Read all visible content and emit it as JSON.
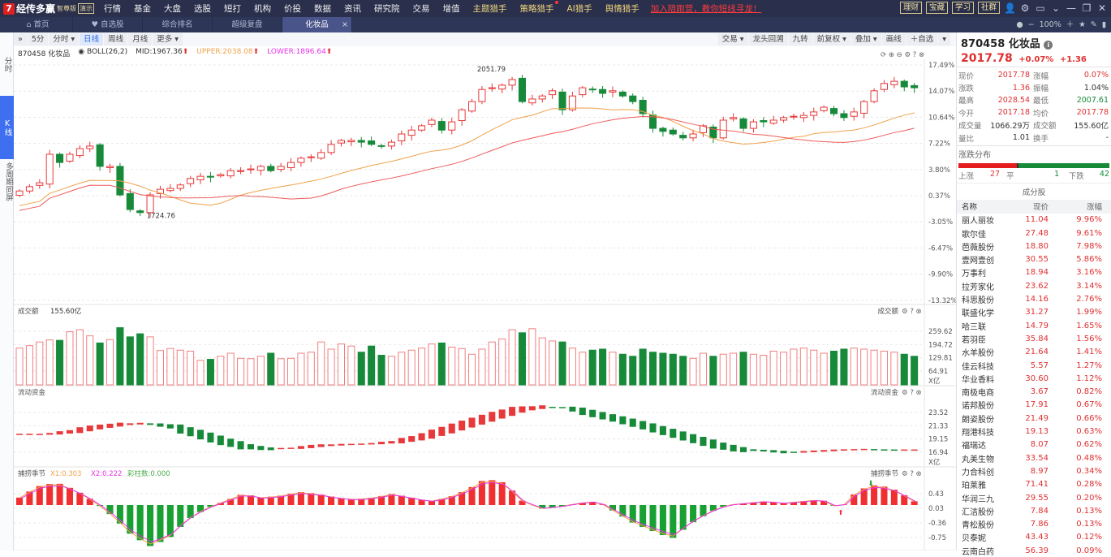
{
  "app": {
    "brand_mark": "7",
    "name": "经传多赢",
    "edition": "智尊版",
    "demo": "演示"
  },
  "menu": [
    "行情",
    "基金",
    "大盘",
    "选股",
    "短打",
    "机构",
    "价投",
    "数据",
    "资讯",
    "研究院",
    "交易",
    "增值"
  ],
  "menu_gold": [
    {
      "label": "主题猎手",
      "dot": false
    },
    {
      "label": "策略猎手",
      "dot": true
    },
    {
      "label": "AI猎手",
      "dot": false
    },
    {
      "label": "舆情猎手",
      "dot": false
    }
  ],
  "promo": "加入陪跑营，教你短线寻龙！",
  "top_buttons": [
    "理财",
    "宝藏",
    "学习",
    "社群"
  ],
  "tabs": [
    {
      "label": "首页",
      "icon": "home-icon"
    },
    {
      "label": "自选股",
      "icon": "heart-icon"
    },
    {
      "label": "综合排名"
    },
    {
      "label": "超级复盘"
    },
    {
      "label": "化妆品",
      "active": true
    }
  ],
  "zoom_level": "100%",
  "left_tabs": [
    "分时",
    "K线",
    "多周期同屏"
  ],
  "toolbar": {
    "left": [
      "5分",
      "分时 ▾",
      "日线",
      "周线",
      "月线",
      "更多 ▾"
    ],
    "selected": "日线",
    "right": [
      "交易 ▾",
      "龙头回溯",
      "九转",
      "前复权 ▾",
      "叠加 ▾",
      "画线",
      "＋自选",
      "▾"
    ]
  },
  "chart_info": {
    "code_name": "870458 化妆品",
    "indicator": "BOLL(26,2)",
    "mid": "MID:1967.36",
    "upper": "UPPER:2038.08",
    "lower": "LOWER:1896.64"
  },
  "price_axis": [
    "17.49%",
    "14.07%",
    "10.64%",
    "7.22%",
    "3.80%",
    "0.37%",
    "-3.05%",
    "-6.47%",
    "-9.90%",
    "-13.32%"
  ],
  "high_label": "2051.79",
  "low_label": "1724.76",
  "colors": {
    "up": "#e8393a",
    "down": "#178a3a",
    "ma1": "#f0a24a",
    "ma2": "#ee5a5a",
    "nav": "#2a2f4c",
    "accent": "#3e6ff0"
  },
  "candles_close": [
    1779,
    1789,
    1798,
    1864,
    1845,
    1864,
    1877,
    1883,
    1836,
    1836,
    1770,
    1736,
    1729,
    1770,
    1783,
    1785,
    1793,
    1808,
    1813,
    1811,
    1817,
    1826,
    1826,
    1830,
    1836,
    1826,
    1836,
    1845,
    1855,
    1858,
    1868,
    1887,
    1896,
    1896,
    1892,
    1887,
    1883,
    1892,
    1911,
    1920,
    1930,
    1943,
    1920,
    1939,
    1967,
    1986,
    2014,
    2018,
    2024,
    2037,
    1986,
    1992,
    1999,
    2011,
    1967,
    1999,
    2018,
    2014,
    2005,
    2011,
    1999,
    1986,
    1958,
    1924,
    1917,
    1911,
    1902,
    1911,
    1930,
    1902,
    1943,
    1949,
    1924,
    1939,
    1939,
    1943,
    1949,
    1952,
    1954,
    1962,
    1973,
    1958,
    1949,
    1962,
    1986,
    2011,
    2028,
    2033,
    2020,
    2018
  ],
  "volume": {
    "title": "成交额",
    "value": "155.60亿",
    "axis": [
      "259.62",
      "194.72",
      "129.81",
      "64.91"
    ],
    "unit": "X亿",
    "values": [
      180,
      192,
      210,
      220,
      218,
      260,
      270,
      240,
      205,
      222,
      280,
      235,
      250,
      235,
      168,
      178,
      170,
      165,
      120,
      125,
      140,
      155,
      130,
      128,
      140,
      155,
      128,
      130,
      155,
      160,
      210,
      175,
      200,
      190,
      160,
      190,
      145,
      140,
      160,
      170,
      180,
      200,
      205,
      185,
      178,
      150,
      175,
      210,
      225,
      270,
      255,
      275,
      230,
      215,
      210,
      180,
      160,
      170,
      175,
      160,
      150,
      140,
      175,
      160,
      155,
      150,
      140,
      130,
      155,
      140,
      150,
      155,
      160,
      150,
      145,
      165,
      160,
      175,
      180,
      170,
      155,
      165,
      175,
      180,
      175,
      170,
      165,
      160,
      150,
      140
    ]
  },
  "liquidity": {
    "title": "流动资金",
    "axis": [
      "23.52",
      "21.33",
      "19.15",
      "16.94"
    ],
    "unit": "X亿",
    "values": [
      19.9,
      19.9,
      20.3,
      21.0,
      21.5,
      21.7,
      21.3,
      20.2,
      19.0,
      18.0,
      17.5,
      17.6,
      18.0,
      18.2,
      18.3,
      18.6,
      19.3,
      20.4,
      21.6,
      22.8,
      23.9,
      24.4,
      24.3,
      23.4,
      22.5,
      21.5,
      20.4,
      19.3,
      18.2,
      17.4,
      17.2,
      16.9,
      17.1,
      17.3,
      17.4,
      17.3,
      17.3
    ]
  },
  "oscillator": {
    "title": "捕捞季节",
    "x1": "X1:0.303",
    "x2": "X2:0.222",
    "bars": "彩柱数:0.000",
    "axis": [
      "0.43",
      "0.03",
      "-0.36",
      "-0.75"
    ],
    "values": [
      0.2,
      0.5,
      0.6,
      0.4,
      0.1,
      -0.3,
      -0.8,
      -1.1,
      -0.9,
      -0.4,
      -0.1,
      0.1,
      0.3,
      0.2,
      0.25,
      0.35,
      0.3,
      0.2,
      0.15,
      0.2,
      0.3,
      0.2,
      0.1,
      0.2,
      0.4,
      0.7,
      0.6,
      0.1,
      -0.1,
      -0.05,
      0.05,
      0.1,
      -0.2,
      -0.5,
      -0.7,
      -0.9,
      -0.5,
      -0.2,
      0,
      0.05,
      0.1,
      0.05,
      0.1,
      0.15,
      -0.1,
      0.4,
      0.55,
      0.4,
      0.1
    ]
  },
  "quote": {
    "title": "870458 化妆品",
    "price": "2017.78",
    "pct": "+0.07%",
    "chg": "+1.36",
    "rows": [
      [
        "现价",
        "2017.78",
        "涨幅",
        "0.07%"
      ],
      [
        "涨跌",
        "1.36",
        "振幅",
        "1.04%"
      ],
      [
        "最高",
        "2028.54",
        "最低",
        "2007.61"
      ],
      [
        "今开",
        "2017.18",
        "均价",
        "2017.78"
      ],
      [
        "成交量",
        "1066.29万",
        "成交额",
        "155.60亿"
      ],
      [
        "量比",
        "1.01",
        "换手",
        "-"
      ]
    ]
  },
  "distribution": {
    "title": "涨跌分布",
    "up_label": "上涨",
    "up": 27,
    "flat_label": "平",
    "flat": 1,
    "down_label": "下跌",
    "down": 42
  },
  "components": {
    "title": "成分股",
    "headers": [
      "名称",
      "现价",
      "涨幅"
    ],
    "rows": [
      [
        "丽人丽妆",
        "11.04",
        "9.96%"
      ],
      [
        "歌尔佳",
        "27.48",
        "9.61%"
      ],
      [
        "芭薇股份",
        "18.80",
        "7.98%"
      ],
      [
        "壹网壹创",
        "30.55",
        "5.86%"
      ],
      [
        "万事利",
        "18.94",
        "3.16%"
      ],
      [
        "拉芳家化",
        "23.62",
        "3.14%"
      ],
      [
        "科思股份",
        "14.16",
        "2.76%"
      ],
      [
        "联盛化学",
        "31.27",
        "1.99%"
      ],
      [
        "哈三联",
        "14.79",
        "1.65%"
      ],
      [
        "若羽臣",
        "35.84",
        "1.56%"
      ],
      [
        "水羊股份",
        "21.64",
        "1.41%"
      ],
      [
        "佳云科技",
        "5.57",
        "1.27%"
      ],
      [
        "华业香料",
        "30.60",
        "1.12%"
      ],
      [
        "南极电商",
        "3.67",
        "0.82%"
      ],
      [
        "诺邦股份",
        "17.91",
        "0.67%"
      ],
      [
        "朗姿股份",
        "21.49",
        "0.66%"
      ],
      [
        "翔港科技",
        "19.13",
        "0.63%"
      ],
      [
        "福瑞达",
        "8.07",
        "0.62%"
      ],
      [
        "丸美生物",
        "33.54",
        "0.48%"
      ],
      [
        "力合科创",
        "8.97",
        "0.34%"
      ],
      [
        "珀莱雅",
        "71.41",
        "0.28%"
      ],
      [
        "华润三九",
        "29.55",
        "0.20%"
      ],
      [
        "汇洁股份",
        "7.84",
        "0.13%"
      ],
      [
        "青松股份",
        "7.86",
        "0.13%"
      ],
      [
        "贝泰妮",
        "43.43",
        "0.12%"
      ],
      [
        "云南白药",
        "56.39",
        "0.09%"
      ]
    ]
  }
}
